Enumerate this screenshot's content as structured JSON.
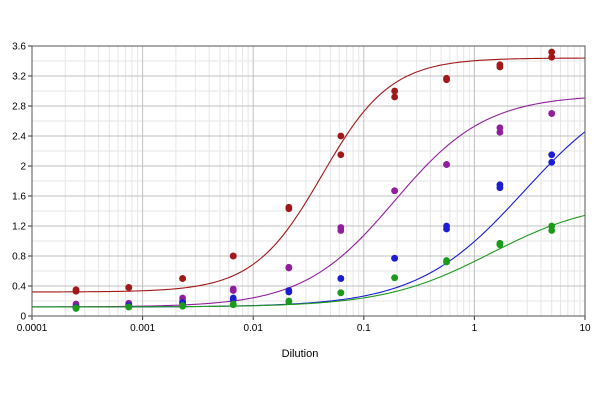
{
  "chart_data": {
    "type": "scatter",
    "title": "",
    "xlabel": "Dilution",
    "ylabel": "",
    "x_scale": "log",
    "xlim": [
      0.0001,
      10
    ],
    "ylim": [
      0,
      3.6
    ],
    "x_ticks": [
      "0.0001",
      "0.001",
      "0.01",
      "0.1",
      "1",
      "10"
    ],
    "y_ticks": [
      "0",
      "0.4",
      "0.8",
      "1.2",
      "1.6",
      "2",
      "2.4",
      "2.8",
      "3.2",
      "3.6"
    ],
    "grid": true,
    "legend": "none",
    "x": [
      0.00025,
      0.00075,
      0.0023,
      0.0066,
      0.021,
      0.062,
      0.19,
      0.56,
      1.7,
      5.0
    ],
    "series": [
      {
        "color": "#a01818",
        "values": [
          [
            0.33,
            0.35
          ],
          [
            0.38,
            0.38
          ],
          [
            0.5,
            0.5
          ],
          [
            0.8,
            0.8
          ],
          [
            1.43,
            1.45
          ],
          [
            2.15,
            2.4
          ],
          [
            2.92,
            3.0
          ],
          [
            3.15,
            3.17
          ],
          [
            3.32,
            3.35
          ],
          [
            3.45,
            3.52
          ]
        ],
        "curve": [
          0.0,
          10.0,
          0.32,
          3.44,
          0.042,
          1.4
        ]
      },
      {
        "color": "#8f1f9a",
        "values": [
          [
            0.13,
            0.16
          ],
          [
            0.15,
            0.17
          ],
          [
            0.2,
            0.24
          ],
          [
            0.34,
            0.36
          ],
          [
            0.64,
            0.65
          ],
          [
            1.14,
            1.18
          ],
          [
            1.67,
            1.67
          ],
          [
            2.02,
            2.02
          ],
          [
            2.45,
            2.51
          ],
          [
            2.7,
            2.7
          ]
        ],
        "curve": [
          0.0,
          10.0,
          0.12,
          2.95,
          0.19,
          1.05
        ]
      },
      {
        "color": "#1c1cd0",
        "values": [
          [
            0.11,
            0.12
          ],
          [
            0.13,
            0.14
          ],
          [
            0.17,
            0.18
          ],
          [
            0.22,
            0.24
          ],
          [
            0.32,
            0.34
          ],
          [
            0.5,
            0.5
          ],
          [
            0.77,
            0.77
          ],
          [
            1.16,
            1.2
          ],
          [
            1.71,
            1.75
          ],
          [
            2.05,
            2.15
          ]
        ],
        "curve": [
          0.0,
          10.0,
          0.12,
          3.2,
          2.8,
          0.9
        ]
      },
      {
        "color": "#1c9a1c",
        "values": [
          [
            0.1,
            0.11
          ],
          [
            0.12,
            0.12
          ],
          [
            0.13,
            0.14
          ],
          [
            0.15,
            0.16
          ],
          [
            0.19,
            0.2
          ],
          [
            0.31,
            0.31
          ],
          [
            0.51,
            0.51
          ],
          [
            0.72,
            0.74
          ],
          [
            0.95,
            0.97
          ],
          [
            1.14,
            1.2
          ]
        ],
        "curve": [
          0.0,
          10.0,
          0.12,
          1.55,
          1.4,
          0.9
        ]
      }
    ]
  }
}
